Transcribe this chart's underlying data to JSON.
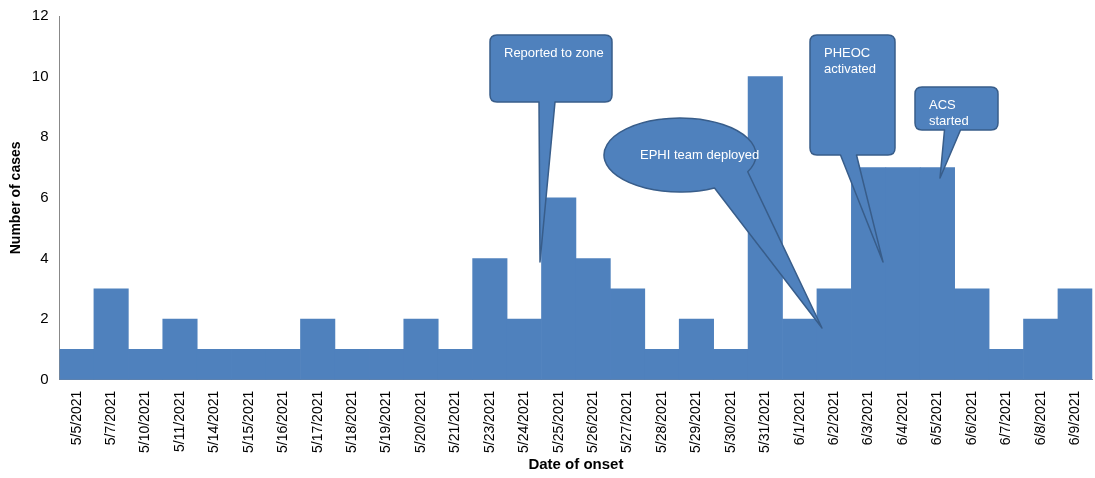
{
  "chart_data": {
    "type": "bar",
    "xlabel": "Date of onset",
    "ylabel": "Number of cases",
    "categories": [
      "5/5/2021",
      "5/7/2021",
      "5/10/2021",
      "5/11/2021",
      "5/14/2021",
      "5/15/2021",
      "5/16/2021",
      "5/17/2021",
      "5/18/2021",
      "5/19/2021",
      "5/20/2021",
      "5/21/2021",
      "5/23/2021",
      "5/24/2021",
      "5/25/2021",
      "5/26/2021",
      "5/27/2021",
      "5/28/2021",
      "5/29/2021",
      "5/30/2021",
      "5/31/2021",
      "6/1/2021",
      "6/2/2021",
      "6/3/2021",
      "6/4/2021",
      "6/5/2021",
      "6/6/2021",
      "6/7/2021",
      "6/8/2021",
      "6/9/2021"
    ],
    "values": [
      1,
      3,
      1,
      2,
      1,
      1,
      1,
      2,
      1,
      1,
      2,
      1,
      4,
      2,
      6,
      4,
      3,
      1,
      2,
      1,
      10,
      2,
      3,
      7,
      7,
      7,
      3,
      1,
      2,
      3
    ],
    "color": "#4f81bd",
    "ylim": [
      0,
      12
    ],
    "yticks": [
      0,
      2,
      4,
      6,
      8,
      10,
      12
    ],
    "grid": false,
    "legend": false,
    "annotations": [
      "Reported to zone",
      "EPHI team deployed",
      "PHEOC activated",
      "ACS started"
    ]
  }
}
